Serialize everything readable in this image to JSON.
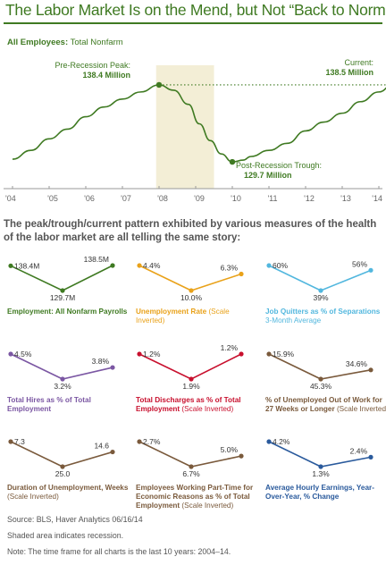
{
  "title": "The Labor Market Is on the Mend, but Not “Back to Normal”",
  "main": {
    "subtitle_bold": "All Employees:",
    "subtitle_rest": " Total Nonfarm",
    "pre_label": "Pre-Recession Peak:",
    "pre_value": "138.4 Million",
    "current_label": "Current:",
    "current_value": "138.5 Million",
    "trough_label": "Post-Recession Trough:",
    "trough_value": "129.7 Million"
  },
  "intro": "The peak/trough/current pattern exhibited by various measures of the health of the labor market are all telling the same story:",
  "colors": {
    "green": "#3f7a22",
    "orange": "#e9a21a",
    "blue": "#52b7de",
    "purple": "#7b57a3",
    "red": "#c8102e",
    "brown": "#7a5a3c",
    "navy": "#2a5a9c"
  },
  "panels": [
    {
      "title": "Employment: All Nonfarm Payrolls",
      "inverted": "",
      "subtitle": "",
      "peak": "138.4M",
      "trough": "129.7M",
      "current": "138.5M"
    },
    {
      "title": "Unemployment Rate ",
      "inverted": "(Scale Inverted)",
      "subtitle": "",
      "peak": "4.4%",
      "trough": "10.0%",
      "current": "6.3%"
    },
    {
      "title": "Job Quitters as % of Separations",
      "inverted": "",
      "subtitle": "3-Month Average",
      "peak": "60%",
      "trough": "39%",
      "current": "56%"
    },
    {
      "title": "Total Hires as % of Total Employment",
      "inverted": "",
      "subtitle": "",
      "peak": "4.5%",
      "trough": "3.2%",
      "current": "3.8%"
    },
    {
      "title": "Total Discharges as % of Total Employment ",
      "inverted": "(Scale Inverted)",
      "subtitle": "",
      "peak": "1.2%",
      "trough": "1.9%",
      "current": "1.2%"
    },
    {
      "title": "% of Unemployed Out of Work for 27 Weeks or Longer ",
      "inverted": "(Scale Inverted)",
      "subtitle": "",
      "peak": "15.9%",
      "trough": "45.3%",
      "current": "34.6%"
    },
    {
      "title": "Duration of Unemployment, Weeks ",
      "inverted": "(Scale Inverted)",
      "subtitle": "",
      "peak": "7.3",
      "trough": "25.0",
      "current": "14.6"
    },
    {
      "title": "Employees Working Part-Time for Economic Reasons as % of Total Employment ",
      "inverted": "(Scale Inverted)",
      "subtitle": "",
      "peak": "2.7%",
      "trough": "6.7%",
      "current": "5.0%"
    },
    {
      "title": "Average Hourly Earnings, Year-Over-Year, % Change",
      "inverted": "",
      "subtitle": "",
      "peak": "4.2%",
      "trough": "1.3%",
      "current": "2.4%"
    }
  ],
  "footer": {
    "source": "Source: BLS, Haver Analytics   06/16/14",
    "shading": "Shaded area indicates recession.",
    "note": "Note: The time frame for all charts is the last 10 years: 2004–14."
  },
  "chart_data": [
    {
      "type": "line",
      "x": [
        "'04",
        "'05",
        "'06",
        "'07",
        "'08",
        "'09",
        "'10",
        "'11",
        "'12",
        "'13",
        "'14"
      ],
      "series": [
        {
          "points": [
            [
              2004.0,
              130.0
            ],
            [
              2004.5,
              131.0
            ],
            [
              2005.0,
              132.3
            ],
            [
              2005.5,
              133.4
            ],
            [
              2006.0,
              134.8
            ],
            [
              2006.5,
              135.9
            ],
            [
              2007.0,
              136.8
            ],
            [
              2007.5,
              137.6
            ],
            [
              2008.0,
              138.4
            ],
            [
              2008.4,
              137.8
            ],
            [
              2008.8,
              136.2
            ],
            [
              2009.1,
              134.0
            ],
            [
              2009.4,
              132.1
            ],
            [
              2009.7,
              130.6
            ],
            [
              2010.0,
              129.7
            ],
            [
              2010.3,
              129.9
            ],
            [
              2010.5,
              130.3
            ],
            [
              2011.0,
              131.0
            ],
            [
              2011.5,
              131.8
            ],
            [
              2012.0,
              133.2
            ],
            [
              2012.5,
              134.2
            ],
            [
              2013.0,
              135.2
            ],
            [
              2013.5,
              136.5
            ],
            [
              2014.0,
              137.6
            ],
            [
              2014.4,
              138.5
            ]
          ]
        }
      ],
      "recession": [
        2007.92,
        2009.5
      ],
      "reference_line": 138.4,
      "grid": false
    },
    {
      "type": "line",
      "x": [
        "Pre-Recession Peak",
        "Post-Recession Trough",
        "Current"
      ],
      "series": [
        {
          "name": "Employment: All Nonfarm Payrolls",
          "values": [
            138.4,
            129.7,
            138.5
          ]
        },
        {
          "name": "Unemployment Rate",
          "values": [
            4.4,
            10.0,
            6.3
          ],
          "scale_inverted": true
        },
        {
          "name": "Job Quitters as % of Separations",
          "values": [
            60,
            39,
            56
          ]
        },
        {
          "name": "Total Hires as % of Total Employment",
          "values": [
            4.5,
            3.2,
            3.8
          ]
        },
        {
          "name": "Total Discharges as % of Total Employment",
          "values": [
            1.2,
            1.9,
            1.2
          ],
          "scale_inverted": true
        },
        {
          "name": "% of Unemployed Out of Work for 27 Weeks or Longer",
          "values": [
            15.9,
            45.3,
            34.6
          ],
          "scale_inverted": true
        },
        {
          "name": "Duration of Unemployment, Weeks",
          "values": [
            7.3,
            25.0,
            14.6
          ],
          "scale_inverted": true
        },
        {
          "name": "Employees Working Part-Time for Economic Reasons as % of Total Employment",
          "values": [
            2.7,
            6.7,
            5.0
          ],
          "scale_inverted": true
        },
        {
          "name": "Average Hourly Earnings, Year-Over-Year, % Change",
          "values": [
            4.2,
            1.3,
            2.4
          ]
        }
      ]
    }
  ]
}
